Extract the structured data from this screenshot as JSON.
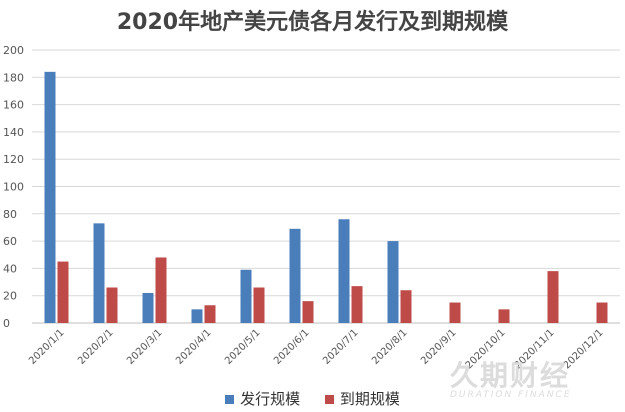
{
  "chart_data": {
    "type": "bar",
    "title": "2020年地产美元债各月发行及到期规模",
    "categories": [
      "2020/1/1",
      "2020/2/1",
      "2020/3/1",
      "2020/4/1",
      "2020/5/1",
      "2020/6/1",
      "2020/7/1",
      "2020/8/1",
      "2020/9/1",
      "2020/10/1",
      "2020/11/1",
      "2020/12/1"
    ],
    "series": [
      {
        "name": "发行规模",
        "color": "#4a7ebb",
        "values": [
          184,
          73,
          22,
          10,
          39,
          69,
          76,
          60,
          0,
          0,
          0,
          0
        ]
      },
      {
        "name": "到期规模",
        "color": "#be4b48",
        "values": [
          45,
          26,
          48,
          13,
          26,
          16,
          27,
          24,
          15,
          10,
          38,
          15
        ]
      }
    ],
    "ylim": [
      0,
      200
    ],
    "yticks": [
      0,
      20,
      40,
      60,
      80,
      100,
      120,
      140,
      160,
      180,
      200
    ],
    "grid": true,
    "legend": "bottom"
  },
  "watermark": {
    "main": "久期财经",
    "sub": "DURATION FINANCE"
  }
}
